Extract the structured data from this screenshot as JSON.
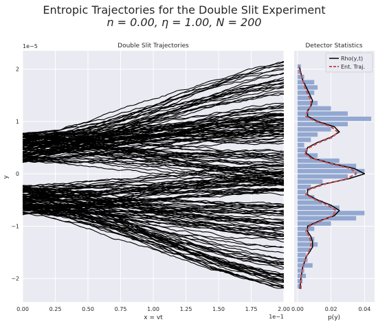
{
  "figure": {
    "title_line1": "Entropic Trajectories for the Double Slit Experiment",
    "title_line2": "n =  0.00, η =  1.00, N = 200"
  },
  "chart_data": [
    {
      "type": "line",
      "title": "Double Slit Trajectories",
      "xlabel": "x = vt",
      "ylabel": "y",
      "x_scale_label": "1e−1",
      "y_scale_label": "1e−5",
      "xlim": [
        0.0,
        2.0
      ],
      "ylim": [
        -2.45,
        2.35
      ],
      "xticks": [
        "0.00",
        "0.25",
        "0.50",
        "0.75",
        "1.00",
        "1.25",
        "1.50",
        "1.75",
        "2.00"
      ],
      "yticks": [
        "−2",
        "−1",
        "0",
        "1",
        "2"
      ],
      "xtick_values": [
        0.0,
        0.25,
        0.5,
        0.75,
        1.0,
        1.25,
        1.5,
        1.75,
        2.0
      ],
      "ytick_values": [
        -2,
        -1,
        0,
        1,
        2
      ],
      "grid": true,
      "series_color": "#000000",
      "trajectory_count": 200,
      "slit_centers": [
        -0.5,
        0.5
      ],
      "final_spread_bands": [
        -2.15,
        -1.35,
        -0.6,
        0.1,
        0.6,
        1.3,
        2.1
      ]
    },
    {
      "type": "bar",
      "title": "Detector Statistics",
      "xlabel": "p(y)",
      "xlim": [
        -0.002,
        0.046
      ],
      "xticks": [
        "0.00",
        "0.02",
        "0.04"
      ],
      "xtick_values": [
        0.0,
        0.02,
        0.04
      ],
      "grid": true,
      "legend": {
        "placement": "top-right",
        "entries": [
          "Rho(y,t)",
          "Ent. Traj."
        ]
      },
      "histogram": {
        "bin_centers": [
          -2.15,
          -2.05,
          -1.95,
          -1.85,
          -1.75,
          -1.65,
          -1.55,
          -1.45,
          -1.35,
          -1.25,
          -1.15,
          -1.05,
          -0.95,
          -0.85,
          -0.75,
          -0.65,
          -0.55,
          -0.45,
          -0.35,
          -0.25,
          -0.15,
          -0.05,
          0.05,
          0.15,
          0.25,
          0.35,
          0.45,
          0.55,
          0.65,
          0.75,
          0.85,
          0.95,
          1.05,
          1.15,
          1.25,
          1.35,
          1.45,
          1.55,
          1.65,
          1.75,
          1.85,
          1.95,
          2.05
        ],
        "values": [
          0.002,
          0.003,
          0.005,
          0.004,
          0.009,
          0.006,
          0.005,
          0.008,
          0.012,
          0.01,
          0.006,
          0.01,
          0.02,
          0.035,
          0.04,
          0.025,
          0.015,
          0.01,
          0.005,
          0.008,
          0.015,
          0.03,
          0.04,
          0.035,
          0.025,
          0.012,
          0.006,
          0.004,
          0.008,
          0.012,
          0.02,
          0.03,
          0.044,
          0.03,
          0.02,
          0.012,
          0.008,
          0.01,
          0.012,
          0.01,
          0.004,
          0.002,
          0.002
        ],
        "color": "#92a8d1"
      },
      "series": [
        {
          "name": "Rho(y,t)",
          "color": "#000000",
          "y": [
            -2.2,
            -2.0,
            -1.8,
            -1.6,
            -1.4,
            -1.3,
            -1.2,
            -1.1,
            -1.0,
            -0.9,
            -0.8,
            -0.7,
            -0.6,
            -0.5,
            -0.4,
            -0.3,
            -0.2,
            -0.1,
            0.0,
            0.1,
            0.2,
            0.3,
            0.4,
            0.5,
            0.6,
            0.7,
            0.8,
            0.9,
            1.0,
            1.1,
            1.2,
            1.3,
            1.4,
            1.6,
            1.8,
            2.0,
            2.05
          ],
          "p": [
            0.0015,
            0.002,
            0.003,
            0.005,
            0.009,
            0.009,
            0.008,
            0.006,
            0.006,
            0.013,
            0.022,
            0.025,
            0.02,
            0.012,
            0.006,
            0.006,
            0.015,
            0.03,
            0.04,
            0.034,
            0.02,
            0.009,
            0.005,
            0.006,
            0.012,
            0.02,
            0.025,
            0.022,
            0.012,
            0.006,
            0.006,
            0.008,
            0.009,
            0.006,
            0.003,
            0.0015,
            0.001
          ]
        },
        {
          "name": "Ent. Traj.",
          "color": "#c44e52",
          "y": [
            -2.2,
            -2.0,
            -1.8,
            -1.6,
            -1.4,
            -1.3,
            -1.2,
            -1.1,
            -1.0,
            -0.9,
            -0.8,
            -0.7,
            -0.6,
            -0.5,
            -0.4,
            -0.3,
            -0.2,
            -0.1,
            0.0,
            0.1,
            0.2,
            0.3,
            0.4,
            0.5,
            0.6,
            0.7,
            0.8,
            0.9,
            1.0,
            1.1,
            1.2,
            1.3,
            1.4,
            1.6,
            1.8,
            2.0,
            2.05
          ],
          "p": [
            0.002,
            0.002,
            0.003,
            0.005,
            0.008,
            0.008,
            0.007,
            0.005,
            0.007,
            0.014,
            0.021,
            0.023,
            0.018,
            0.011,
            0.005,
            0.007,
            0.016,
            0.029,
            0.035,
            0.032,
            0.019,
            0.008,
            0.004,
            0.007,
            0.013,
            0.021,
            0.024,
            0.02,
            0.011,
            0.005,
            0.006,
            0.008,
            0.008,
            0.005,
            0.003,
            0.001,
            0.001
          ]
        }
      ]
    }
  ]
}
